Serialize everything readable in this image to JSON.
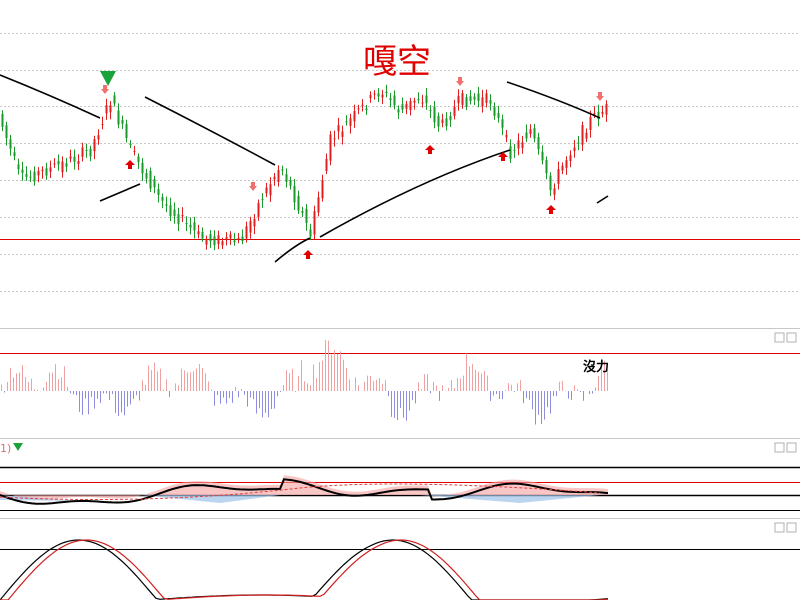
{
  "annotations": {
    "main": "嘎空",
    "histogram": "沒力",
    "indicator": "1)"
  }
}
